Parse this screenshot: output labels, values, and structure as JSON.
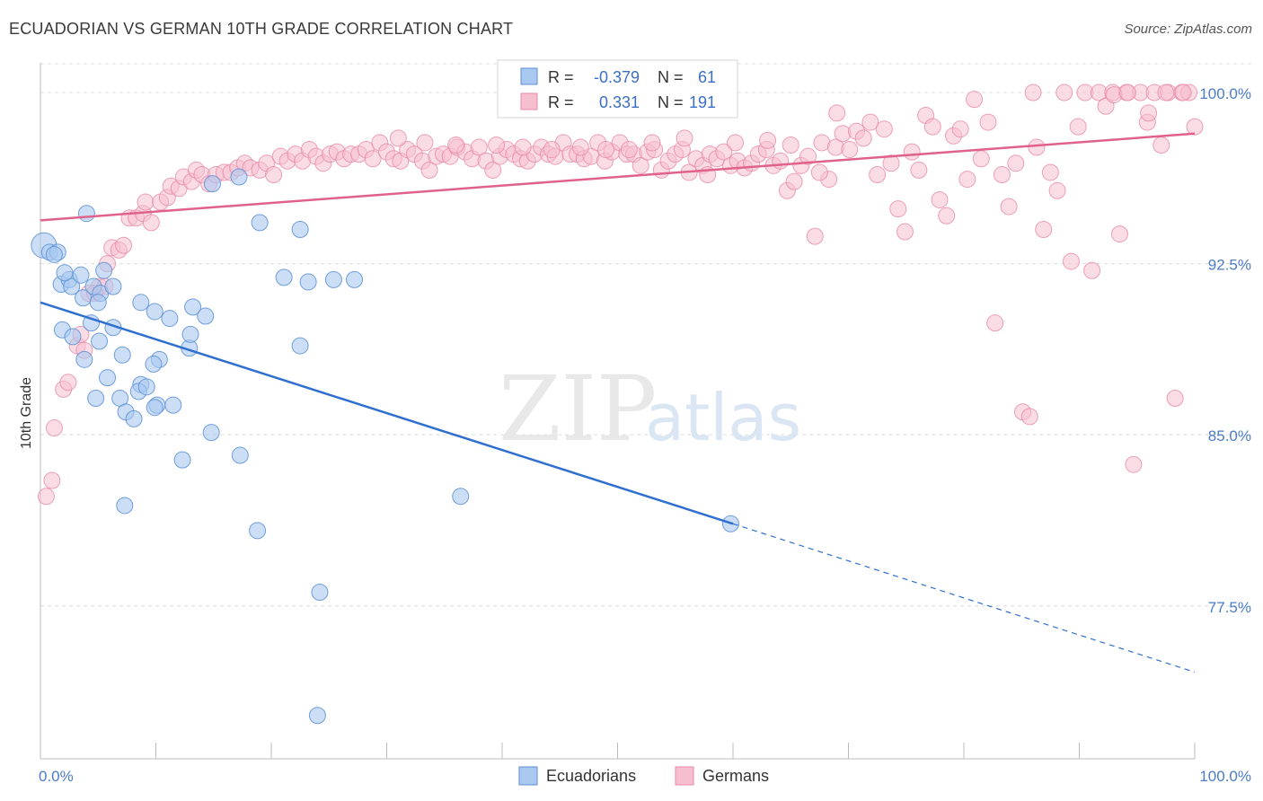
{
  "title": "ECUADORIAN VS GERMAN 10TH GRADE CORRELATION CHART",
  "source": "Source: ZipAtlas.com",
  "watermark": {
    "zip": "ZIP",
    "atlas": "atlas"
  },
  "colors": {
    "blue_fill": "#a9c8f0",
    "blue_stroke": "#5a8fd6",
    "blue_line": "#2f6fd0",
    "pink_fill": "#f6bfd0",
    "pink_stroke": "#e88aa8",
    "pink_line": "#e0628c",
    "grid": "#dcdcdc",
    "tick_text": "#4a7cc7"
  },
  "stats_legend": {
    "rows": [
      {
        "r_label": "R =",
        "r_value": "-0.379",
        "n_label": "N =",
        "n_value": "61"
      },
      {
        "r_label": "R =",
        "r_value": "0.331",
        "n_label": "N =",
        "n_value": "191"
      }
    ]
  },
  "chart_data": {
    "type": "scatter",
    "title": "ECUADORIAN VS GERMAN 10TH GRADE CORRELATION CHART",
    "xlabel": "",
    "ylabel": "10th Grade",
    "xlim": [
      0,
      100
    ],
    "ylim": [
      70.8,
      101.3
    ],
    "x_tick_labels": [
      "0.0%",
      "100.0%"
    ],
    "y_ticks": [
      77.5,
      85.0,
      92.5,
      100.0
    ],
    "y_tick_labels": [
      "77.5%",
      "85.0%",
      "92.5%",
      "100.0%"
    ],
    "grid": true,
    "legend_position": "bottom-center",
    "series": [
      {
        "name": "Ecuadorians",
        "trend": {
          "x0": 0,
          "y0": 90.8,
          "x1": 60,
          "y1": 81.1,
          "dash_to_x": 100,
          "dash_to_y": 74.6
        },
        "points": [
          [
            0.3,
            93.3
          ],
          [
            0.8,
            93.0
          ],
          [
            1.5,
            93.0
          ],
          [
            1.2,
            92.9
          ],
          [
            4,
            94.7
          ],
          [
            1.8,
            91.6
          ],
          [
            2.5,
            91.8
          ],
          [
            2.7,
            91.5
          ],
          [
            3.5,
            92.0
          ],
          [
            3.7,
            91.0
          ],
          [
            4.6,
            91.5
          ],
          [
            5.2,
            91.2
          ],
          [
            6.3,
            91.5
          ],
          [
            1.9,
            89.6
          ],
          [
            2.8,
            89.3
          ],
          [
            3.8,
            88.3
          ],
          [
            4.4,
            89.9
          ],
          [
            5.1,
            89.1
          ],
          [
            7.1,
            88.5
          ],
          [
            6.3,
            89.7
          ],
          [
            8.7,
            90.8
          ],
          [
            9.9,
            90.4
          ],
          [
            11.2,
            90.1
          ],
          [
            13.2,
            90.6
          ],
          [
            14.3,
            90.2
          ],
          [
            10.3,
            88.3
          ],
          [
            12.9,
            88.8
          ],
          [
            8.7,
            87.2
          ],
          [
            5.8,
            87.5
          ],
          [
            4.8,
            86.6
          ],
          [
            6.9,
            86.6
          ],
          [
            7.4,
            86.0
          ],
          [
            8.5,
            86.9
          ],
          [
            9.2,
            87.1
          ],
          [
            10.1,
            86.3
          ],
          [
            11.5,
            86.3
          ],
          [
            8.1,
            85.7
          ],
          [
            9.9,
            86.2
          ],
          [
            14.8,
            85.1
          ],
          [
            17.3,
            84.1
          ],
          [
            12.3,
            83.9
          ],
          [
            7.3,
            81.9
          ],
          [
            18.8,
            80.8
          ],
          [
            24.2,
            78.1
          ],
          [
            24.0,
            72.7
          ],
          [
            19.0,
            94.3
          ],
          [
            22.5,
            94.0
          ],
          [
            14.9,
            96.0
          ],
          [
            17.2,
            96.3
          ],
          [
            21.1,
            91.9
          ],
          [
            23.2,
            91.7
          ],
          [
            25.4,
            91.8
          ],
          [
            27.2,
            91.8
          ],
          [
            22.5,
            88.9
          ],
          [
            36.4,
            82.3
          ],
          [
            59.8,
            81.1
          ],
          [
            2.1,
            92.1
          ],
          [
            5.0,
            90.8
          ],
          [
            9.8,
            88.1
          ],
          [
            13.0,
            89.4
          ],
          [
            5.5,
            92.2
          ]
        ]
      },
      {
        "name": "Germans",
        "trend": {
          "x0": 0,
          "y0": 94.4,
          "x1": 100,
          "y1": 98.2
        },
        "points": [
          [
            0.5,
            82.3
          ],
          [
            1.0,
            83.0
          ],
          [
            1.2,
            85.3
          ],
          [
            2.0,
            87.0
          ],
          [
            2.4,
            87.3
          ],
          [
            3.2,
            88.9
          ],
          [
            3.5,
            89.4
          ],
          [
            3.8,
            88.7
          ],
          [
            4.2,
            91.2
          ],
          [
            5.1,
            91.5
          ],
          [
            5.6,
            91.5
          ],
          [
            4.7,
            91.2
          ],
          [
            5.8,
            92.5
          ],
          [
            6.2,
            93.2
          ],
          [
            6.8,
            93.1
          ],
          [
            7.2,
            93.3
          ],
          [
            7.7,
            94.5
          ],
          [
            8.3,
            94.5
          ],
          [
            8.9,
            94.7
          ],
          [
            9.6,
            94.3
          ],
          [
            9.1,
            95.2
          ],
          [
            10.4,
            95.2
          ],
          [
            11.0,
            95.4
          ],
          [
            11.3,
            95.9
          ],
          [
            12.0,
            95.8
          ],
          [
            12.4,
            96.3
          ],
          [
            13.1,
            96.1
          ],
          [
            13.5,
            96.6
          ],
          [
            14.0,
            96.4
          ],
          [
            14.6,
            96.0
          ],
          [
            15.2,
            96.4
          ],
          [
            15.9,
            96.5
          ],
          [
            16.5,
            96.5
          ],
          [
            17.1,
            96.7
          ],
          [
            17.7,
            96.9
          ],
          [
            18.2,
            96.7
          ],
          [
            19.0,
            96.6
          ],
          [
            19.6,
            96.9
          ],
          [
            20.2,
            96.4
          ],
          [
            20.8,
            97.2
          ],
          [
            21.4,
            97.0
          ],
          [
            22.1,
            97.3
          ],
          [
            22.7,
            97.0
          ],
          [
            23.3,
            97.5
          ],
          [
            23.9,
            97.2
          ],
          [
            24.5,
            96.9
          ],
          [
            25.1,
            97.3
          ],
          [
            25.7,
            97.4
          ],
          [
            26.3,
            97.1
          ],
          [
            26.9,
            97.3
          ],
          [
            27.6,
            97.3
          ],
          [
            28.2,
            97.5
          ],
          [
            28.8,
            97.1
          ],
          [
            29.4,
            97.8
          ],
          [
            30.0,
            97.4
          ],
          [
            30.6,
            97.1
          ],
          [
            31.2,
            97.0
          ],
          [
            31.8,
            97.5
          ],
          [
            32.4,
            97.3
          ],
          [
            33.1,
            97.0
          ],
          [
            33.7,
            96.6
          ],
          [
            34.3,
            97.2
          ],
          [
            34.9,
            97.3
          ],
          [
            35.5,
            97.2
          ],
          [
            36.1,
            97.6
          ],
          [
            36.8,
            97.4
          ],
          [
            37.4,
            97.1
          ],
          [
            38.0,
            97.6
          ],
          [
            38.6,
            97.0
          ],
          [
            39.2,
            96.6
          ],
          [
            39.8,
            97.2
          ],
          [
            40.4,
            97.5
          ],
          [
            41.0,
            97.3
          ],
          [
            41.6,
            97.1
          ],
          [
            42.2,
            97.0
          ],
          [
            42.8,
            97.3
          ],
          [
            43.4,
            97.6
          ],
          [
            44.0,
            97.3
          ],
          [
            44.6,
            97.2
          ],
          [
            45.3,
            97.8
          ],
          [
            45.9,
            97.3
          ],
          [
            46.5,
            97.3
          ],
          [
            47.1,
            97.1
          ],
          [
            47.7,
            97.2
          ],
          [
            48.3,
            97.8
          ],
          [
            48.9,
            97.0
          ],
          [
            49.5,
            97.4
          ],
          [
            50.2,
            97.8
          ],
          [
            50.8,
            97.3
          ],
          [
            51.4,
            97.3
          ],
          [
            52.0,
            96.8
          ],
          [
            52.6,
            97.4
          ],
          [
            53.2,
            97.5
          ],
          [
            53.8,
            96.6
          ],
          [
            54.4,
            97.0
          ],
          [
            55.0,
            97.3
          ],
          [
            55.6,
            97.5
          ],
          [
            56.2,
            96.5
          ],
          [
            56.8,
            97.1
          ],
          [
            57.4,
            96.8
          ],
          [
            58.0,
            97.3
          ],
          [
            58.6,
            97.1
          ],
          [
            59.2,
            97.4
          ],
          [
            59.8,
            96.8
          ],
          [
            60.4,
            97.0
          ],
          [
            61.0,
            96.7
          ],
          [
            61.6,
            96.9
          ],
          [
            62.2,
            97.3
          ],
          [
            62.9,
            97.5
          ],
          [
            63.5,
            96.8
          ],
          [
            64.1,
            97.0
          ],
          [
            64.7,
            95.7
          ],
          [
            65.3,
            96.1
          ],
          [
            65.9,
            96.8
          ],
          [
            66.5,
            97.2
          ],
          [
            67.1,
            93.7
          ],
          [
            67.7,
            97.8
          ],
          [
            68.3,
            96.2
          ],
          [
            68.9,
            97.6
          ],
          [
            69.5,
            98.2
          ],
          [
            70.1,
            97.5
          ],
          [
            70.7,
            98.3
          ],
          [
            71.3,
            98.0
          ],
          [
            71.9,
            98.7
          ],
          [
            72.5,
            96.4
          ],
          [
            73.1,
            98.4
          ],
          [
            73.7,
            96.9
          ],
          [
            74.3,
            94.9
          ],
          [
            74.9,
            93.9
          ],
          [
            75.5,
            97.4
          ],
          [
            76.1,
            96.6
          ],
          [
            76.7,
            99.0
          ],
          [
            77.3,
            98.5
          ],
          [
            77.9,
            95.3
          ],
          [
            78.5,
            94.6
          ],
          [
            79.1,
            98.1
          ],
          [
            79.7,
            98.4
          ],
          [
            80.3,
            96.2
          ],
          [
            80.9,
            99.7
          ],
          [
            81.5,
            97.1
          ],
          [
            82.1,
            98.7
          ],
          [
            82.7,
            89.9
          ],
          [
            83.3,
            96.4
          ],
          [
            83.9,
            95.0
          ],
          [
            84.5,
            96.9
          ],
          [
            85.1,
            86.0
          ],
          [
            85.7,
            85.8
          ],
          [
            86.3,
            97.6
          ],
          [
            86.9,
            94.0
          ],
          [
            87.5,
            96.5
          ],
          [
            88.1,
            95.7
          ],
          [
            88.7,
            100.0
          ],
          [
            89.3,
            92.6
          ],
          [
            89.9,
            98.5
          ],
          [
            90.5,
            100.0
          ],
          [
            91.1,
            92.2
          ],
          [
            91.7,
            100.0
          ],
          [
            92.3,
            99.4
          ],
          [
            92.9,
            100.0
          ],
          [
            93.5,
            93.8
          ],
          [
            94.1,
            100.0
          ],
          [
            94.7,
            83.7
          ],
          [
            95.3,
            100.0
          ],
          [
            95.9,
            98.7
          ],
          [
            96.5,
            100.0
          ],
          [
            97.1,
            97.7
          ],
          [
            97.7,
            100.0
          ],
          [
            98.3,
            86.6
          ],
          [
            98.9,
            100.0
          ],
          [
            99.5,
            100.0
          ],
          [
            100.0,
            98.5
          ],
          [
            86.0,
            100.0
          ],
          [
            93.0,
            99.9
          ],
          [
            94.2,
            100.0
          ],
          [
            96.0,
            99.1
          ],
          [
            97.5,
            100.0
          ],
          [
            99.0,
            100.0
          ],
          [
            31.0,
            98.0
          ],
          [
            33.3,
            97.8
          ],
          [
            36.0,
            97.7
          ],
          [
            39.5,
            97.7
          ],
          [
            41.8,
            97.6
          ],
          [
            44.3,
            97.5
          ],
          [
            46.8,
            97.6
          ],
          [
            49.0,
            97.5
          ],
          [
            51.0,
            97.5
          ],
          [
            53.0,
            97.8
          ],
          [
            55.8,
            98.0
          ],
          [
            57.8,
            96.4
          ],
          [
            60.2,
            97.8
          ],
          [
            63.0,
            97.9
          ],
          [
            65.0,
            97.7
          ],
          [
            67.5,
            96.5
          ],
          [
            69.0,
            99.1
          ]
        ]
      }
    ]
  },
  "legend": {
    "items": [
      {
        "label": "Ecuadorians"
      },
      {
        "label": "Germans"
      }
    ]
  }
}
